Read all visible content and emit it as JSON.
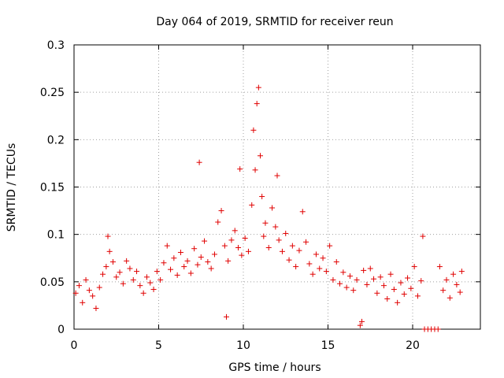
{
  "chart_data": {
    "type": "scatter",
    "title": "Day 064 of 2019, SRMTID for receiver reun",
    "xlabel": "GPS time / hours",
    "ylabel": "SRMTID / TECUs",
    "xlim": [
      0,
      24
    ],
    "ylim": [
      0,
      0.3
    ],
    "x_ticks": [
      0,
      5,
      10,
      15,
      20
    ],
    "x_tick_labels": [
      "0",
      "5",
      "10",
      "15",
      "20"
    ],
    "y_ticks": [
      0,
      0.05,
      0.1,
      0.15,
      0.2,
      0.25,
      0.3
    ],
    "y_tick_labels": [
      "0",
      "0.05",
      "0.1",
      "0.15",
      "0.2",
      "0.25",
      "0.3"
    ],
    "grid": true,
    "marker": "plus",
    "color": "#e00000",
    "series": [
      {
        "name": "SRMTID",
        "points": [
          [
            0.1,
            0.038
          ],
          [
            0.3,
            0.046
          ],
          [
            0.5,
            0.028
          ],
          [
            0.7,
            0.052
          ],
          [
            0.9,
            0.041
          ],
          [
            1.1,
            0.035
          ],
          [
            1.3,
            0.022
          ],
          [
            1.5,
            0.044
          ],
          [
            1.7,
            0.058
          ],
          [
            1.9,
            0.066
          ],
          [
            2.0,
            0.098
          ],
          [
            2.1,
            0.082
          ],
          [
            2.3,
            0.071
          ],
          [
            2.5,
            0.055
          ],
          [
            2.7,
            0.06
          ],
          [
            2.9,
            0.048
          ],
          [
            3.1,
            0.072
          ],
          [
            3.3,
            0.064
          ],
          [
            3.5,
            0.052
          ],
          [
            3.7,
            0.061
          ],
          [
            3.9,
            0.046
          ],
          [
            4.1,
            0.038
          ],
          [
            4.3,
            0.055
          ],
          [
            4.5,
            0.049
          ],
          [
            4.7,
            0.042
          ],
          [
            4.9,
            0.061
          ],
          [
            5.1,
            0.052
          ],
          [
            5.3,
            0.07
          ],
          [
            5.5,
            0.088
          ],
          [
            5.7,
            0.063
          ],
          [
            5.9,
            0.075
          ],
          [
            6.1,
            0.057
          ],
          [
            6.3,
            0.081
          ],
          [
            6.5,
            0.066
          ],
          [
            6.7,
            0.072
          ],
          [
            6.9,
            0.059
          ],
          [
            7.1,
            0.085
          ],
          [
            7.3,
            0.068
          ],
          [
            7.4,
            0.176
          ],
          [
            7.5,
            0.076
          ],
          [
            7.7,
            0.093
          ],
          [
            7.9,
            0.071
          ],
          [
            8.1,
            0.064
          ],
          [
            8.3,
            0.079
          ],
          [
            8.5,
            0.113
          ],
          [
            8.7,
            0.125
          ],
          [
            8.9,
            0.088
          ],
          [
            9.0,
            0.013
          ],
          [
            9.1,
            0.072
          ],
          [
            9.3,
            0.094
          ],
          [
            9.5,
            0.104
          ],
          [
            9.7,
            0.086
          ],
          [
            9.8,
            0.169
          ],
          [
            9.9,
            0.078
          ],
          [
            10.1,
            0.096
          ],
          [
            10.3,
            0.082
          ],
          [
            10.5,
            0.131
          ],
          [
            10.6,
            0.21
          ],
          [
            10.7,
            0.168
          ],
          [
            10.8,
            0.238
          ],
          [
            10.9,
            0.255
          ],
          [
            11.0,
            0.183
          ],
          [
            11.1,
            0.14
          ],
          [
            11.2,
            0.098
          ],
          [
            11.3,
            0.112
          ],
          [
            11.5,
            0.086
          ],
          [
            11.7,
            0.128
          ],
          [
            11.9,
            0.108
          ],
          [
            12.0,
            0.162
          ],
          [
            12.1,
            0.094
          ],
          [
            12.3,
            0.082
          ],
          [
            12.5,
            0.101
          ],
          [
            12.7,
            0.073
          ],
          [
            12.9,
            0.088
          ],
          [
            13.1,
            0.066
          ],
          [
            13.3,
            0.083
          ],
          [
            13.5,
            0.124
          ],
          [
            13.7,
            0.092
          ],
          [
            13.9,
            0.069
          ],
          [
            14.1,
            0.058
          ],
          [
            14.3,
            0.079
          ],
          [
            14.5,
            0.064
          ],
          [
            14.7,
            0.075
          ],
          [
            14.9,
            0.061
          ],
          [
            15.1,
            0.088
          ],
          [
            15.3,
            0.052
          ],
          [
            15.5,
            0.071
          ],
          [
            15.7,
            0.048
          ],
          [
            15.9,
            0.06
          ],
          [
            16.1,
            0.044
          ],
          [
            16.3,
            0.056
          ],
          [
            16.5,
            0.041
          ],
          [
            16.7,
            0.052
          ],
          [
            16.9,
            0.004
          ],
          [
            17.0,
            0.008
          ],
          [
            17.1,
            0.062
          ],
          [
            17.3,
            0.047
          ],
          [
            17.5,
            0.064
          ],
          [
            17.7,
            0.053
          ],
          [
            17.9,
            0.038
          ],
          [
            18.1,
            0.055
          ],
          [
            18.3,
            0.046
          ],
          [
            18.5,
            0.032
          ],
          [
            18.7,
            0.058
          ],
          [
            18.9,
            0.042
          ],
          [
            19.1,
            0.028
          ],
          [
            19.3,
            0.049
          ],
          [
            19.5,
            0.037
          ],
          [
            19.7,
            0.054
          ],
          [
            19.9,
            0.043
          ],
          [
            20.1,
            0.066
          ],
          [
            20.3,
            0.035
          ],
          [
            20.5,
            0.051
          ],
          [
            20.6,
            0.098
          ],
          [
            20.7,
            0.0
          ],
          [
            20.9,
            0.0
          ],
          [
            21.1,
            0.0
          ],
          [
            21.3,
            0.0
          ],
          [
            21.5,
            0.0
          ],
          [
            21.6,
            0.066
          ],
          [
            21.8,
            0.041
          ],
          [
            22.0,
            0.052
          ],
          [
            22.2,
            0.033
          ],
          [
            22.4,
            0.058
          ],
          [
            22.6,
            0.047
          ],
          [
            22.8,
            0.039
          ],
          [
            22.9,
            0.061
          ]
        ]
      }
    ]
  }
}
